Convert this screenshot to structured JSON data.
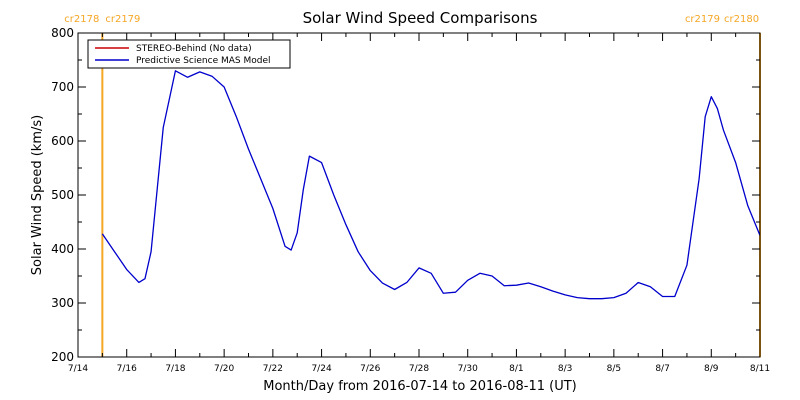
{
  "chart_data": {
    "type": "line",
    "title": "Solar Wind Speed Comparisons",
    "xlabel": "Month/Day from 2016-07-14 to 2016-08-11 (UT)",
    "ylabel": "Solar Wind Speed (km/s)",
    "xlim": [
      "2016-07-14",
      "2016-08-11"
    ],
    "ylim": [
      200,
      800
    ],
    "x_ticks": [
      "7/14",
      "7/16",
      "7/18",
      "7/20",
      "7/22",
      "7/24",
      "7/26",
      "7/28",
      "7/30",
      "8/1",
      "8/3",
      "8/5",
      "8/7",
      "8/9",
      "8/11"
    ],
    "y_ticks": [
      200,
      300,
      400,
      500,
      600,
      700,
      800
    ],
    "grid": false,
    "legend_position": "top-left",
    "carrington_markers": [
      {
        "x": "2016-07-15",
        "left_label": "cr2178",
        "right_label": "cr2179"
      },
      {
        "x": "2016-08-11",
        "left_label": "cr2179",
        "right_label": "cr2180"
      }
    ],
    "series": [
      {
        "name": "STEREO-Behind (No data)",
        "color": "#cc0000",
        "x": [],
        "values": []
      },
      {
        "name": "Predictive Science MAS Model",
        "color": "#0000cc",
        "x": [
          "2016-07-15 00:00",
          "2016-07-15 12:00",
          "2016-07-16 00:00",
          "2016-07-16 12:00",
          "2016-07-16 18:00",
          "2016-07-17 00:00",
          "2016-07-17 06:00",
          "2016-07-17 12:00",
          "2016-07-18 00:00",
          "2016-07-18 12:00",
          "2016-07-19 00:00",
          "2016-07-19 12:00",
          "2016-07-20 00:00",
          "2016-07-20 12:00",
          "2016-07-21 00:00",
          "2016-07-21 12:00",
          "2016-07-22 00:00",
          "2016-07-22 12:00",
          "2016-07-22 18:00",
          "2016-07-23 00:00",
          "2016-07-23 06:00",
          "2016-07-23 12:00",
          "2016-07-24 00:00",
          "2016-07-24 12:00",
          "2016-07-25 00:00",
          "2016-07-25 12:00",
          "2016-07-26 00:00",
          "2016-07-26 12:00",
          "2016-07-27 00:00",
          "2016-07-27 12:00",
          "2016-07-28 00:00",
          "2016-07-28 12:00",
          "2016-07-29 00:00",
          "2016-07-29 12:00",
          "2016-07-30 00:00",
          "2016-07-30 12:00",
          "2016-07-31 00:00",
          "2016-07-31 12:00",
          "2016-08-01 00:00",
          "2016-08-01 12:00",
          "2016-08-02 00:00",
          "2016-08-02 12:00",
          "2016-08-03 00:00",
          "2016-08-03 12:00",
          "2016-08-04 00:00",
          "2016-08-04 12:00",
          "2016-08-05 00:00",
          "2016-08-05 12:00",
          "2016-08-06 00:00",
          "2016-08-06 12:00",
          "2016-08-07 00:00",
          "2016-08-07 12:00",
          "2016-08-08 00:00",
          "2016-08-08 12:00",
          "2016-08-08 18:00",
          "2016-08-09 00:00",
          "2016-08-09 06:00",
          "2016-08-09 12:00",
          "2016-08-10 00:00",
          "2016-08-10 12:00",
          "2016-08-11 00:00"
        ],
        "values": [
          428,
          395,
          362,
          338,
          345,
          395,
          510,
          625,
          730,
          718,
          728,
          720,
          700,
          645,
          585,
          530,
          475,
          405,
          398,
          430,
          510,
          572,
          560,
          500,
          445,
          395,
          360,
          337,
          325,
          338,
          365,
          355,
          318,
          320,
          342,
          355,
          350,
          332,
          333,
          337,
          330,
          322,
          315,
          310,
          308,
          308,
          310,
          318,
          338,
          330,
          312,
          312,
          370,
          530,
          645,
          682,
          660,
          620,
          560,
          480,
          425
        ]
      }
    ]
  }
}
